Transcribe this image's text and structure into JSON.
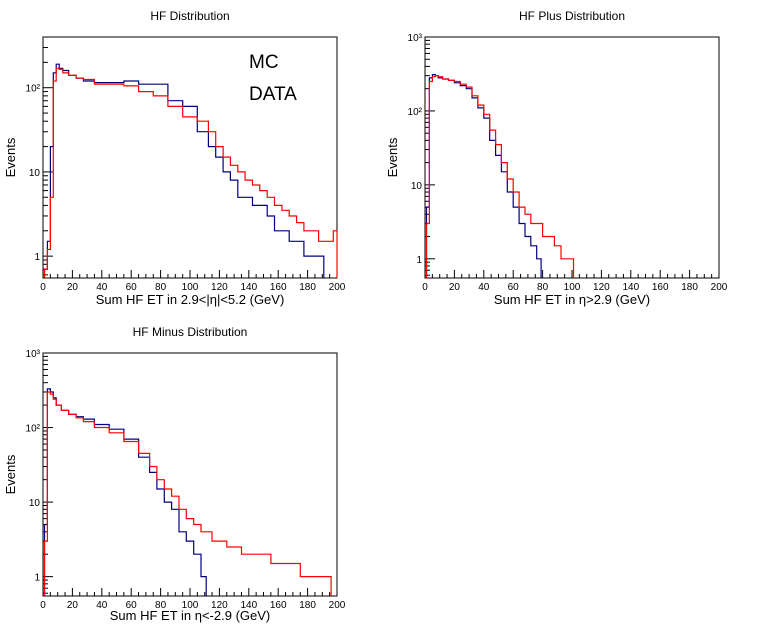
{
  "chart_data": [
    {
      "type": "line",
      "title": "HF Distribution",
      "xlabel": "Sum HF ET in 2.9<|η|<5.2 (GeV)",
      "ylabel": "Events",
      "xlim": [
        0,
        200
      ],
      "ylim": [
        0.55,
        400
      ],
      "yscale": "log",
      "x_ticks": [
        "0",
        "20",
        "40",
        "60",
        "80",
        "100",
        "120",
        "140",
        "160",
        "180",
        "200"
      ],
      "y_ticks": [
        {
          "value": 1,
          "label": "1"
        },
        {
          "value": 10,
          "label": "10"
        },
        {
          "value": 100,
          "label": "10²"
        }
      ],
      "legend": {
        "placement": "top-right",
        "entries": [
          "MC",
          "DATA"
        ]
      },
      "series": [
        {
          "name": "MC",
          "color": "#000080",
          "x": [
            2,
            4,
            6,
            8,
            10,
            12,
            15,
            20,
            25,
            30,
            40,
            50,
            60,
            70,
            80,
            90,
            100,
            110,
            115,
            120,
            125,
            130,
            135,
            140,
            145,
            150,
            155,
            160,
            165,
            170,
            175,
            180,
            185,
            190
          ],
          "y": [
            0.7,
            1.5,
            20,
            150,
            190,
            170,
            160,
            140,
            130,
            120,
            115,
            115,
            120,
            110,
            110,
            70,
            60,
            30,
            20,
            15,
            10,
            8,
            5,
            5,
            4,
            4,
            3,
            2,
            2,
            1.5,
            1.5,
            1,
            1,
            1
          ]
        },
        {
          "name": "DATA",
          "color": "#ff0000",
          "x": [
            2,
            4,
            6,
            8,
            10,
            12,
            15,
            20,
            25,
            30,
            40,
            50,
            60,
            70,
            80,
            90,
            100,
            110,
            115,
            120,
            125,
            130,
            135,
            140,
            145,
            150,
            155,
            160,
            165,
            170,
            175,
            180,
            185,
            190,
            195,
            200
          ],
          "y": [
            0.7,
            1.2,
            5,
            120,
            170,
            165,
            150,
            140,
            130,
            125,
            110,
            110,
            105,
            90,
            80,
            60,
            45,
            40,
            30,
            20,
            15,
            12,
            10,
            8,
            7,
            6,
            5,
            4,
            3.5,
            3,
            2.5,
            2,
            2,
            1.5,
            1.5,
            2
          ]
        }
      ]
    },
    {
      "type": "line",
      "title": "HF Plus Distribution",
      "xlabel": "Sum HF ET in η>2.9 (GeV)",
      "ylabel": "Events",
      "xlim": [
        0,
        200
      ],
      "ylim": [
        0.55,
        1000
      ],
      "yscale": "log",
      "x_ticks": [
        "0",
        "20",
        "40",
        "60",
        "80",
        "100",
        "120",
        "140",
        "160",
        "180",
        "200"
      ],
      "y_ticks": [
        {
          "value": 1,
          "label": "1"
        },
        {
          "value": 10,
          "label": "10"
        },
        {
          "value": 100,
          "label": "10²"
        },
        {
          "value": 1000,
          "label": "10³"
        }
      ],
      "series": [
        {
          "name": "MC",
          "color": "#000080",
          "x": [
            2,
            4,
            6,
            8,
            10,
            14,
            18,
            22,
            26,
            30,
            34,
            38,
            42,
            46,
            50,
            54,
            58,
            62,
            66,
            70,
            74,
            78
          ],
          "y": [
            5,
            280,
            310,
            300,
            280,
            270,
            260,
            240,
            220,
            200,
            150,
            110,
            80,
            40,
            25,
            15,
            8,
            5,
            3,
            2,
            1.5,
            1
          ]
        },
        {
          "name": "DATA",
          "color": "#ff0000",
          "x": [
            2,
            4,
            6,
            8,
            10,
            14,
            18,
            22,
            26,
            30,
            34,
            38,
            42,
            46,
            50,
            54,
            58,
            62,
            66,
            70,
            74,
            78,
            82,
            86,
            90,
            95,
            100
          ],
          "y": [
            3,
            250,
            290,
            300,
            290,
            270,
            260,
            250,
            230,
            210,
            160,
            120,
            90,
            55,
            35,
            20,
            12,
            8,
            5,
            4,
            3,
            3,
            2,
            2,
            1.5,
            1,
            1
          ]
        }
      ]
    },
    {
      "type": "line",
      "title": "HF Minus Distribution",
      "xlabel": "Sum HF ET in η<-2.9 (GeV)",
      "ylabel": "Events",
      "xlim": [
        0,
        200
      ],
      "ylim": [
        0.55,
        1000
      ],
      "yscale": "log",
      "x_ticks": [
        "0",
        "20",
        "40",
        "60",
        "80",
        "100",
        "120",
        "140",
        "160",
        "180",
        "200"
      ],
      "y_ticks": [
        {
          "value": 1,
          "label": "1"
        },
        {
          "value": 10,
          "label": "10"
        },
        {
          "value": 100,
          "label": "10²"
        },
        {
          "value": 1000,
          "label": "10³"
        }
      ],
      "series": [
        {
          "name": "MC",
          "color": "#000080",
          "x": [
            2,
            4,
            6,
            8,
            10,
            15,
            20,
            25,
            30,
            40,
            50,
            60,
            70,
            75,
            80,
            85,
            90,
            95,
            100,
            105,
            110
          ],
          "y": [
            5,
            330,
            300,
            250,
            200,
            170,
            150,
            140,
            130,
            110,
            95,
            70,
            40,
            25,
            15,
            10,
            8,
            4,
            3,
            2,
            1
          ]
        },
        {
          "name": "DATA",
          "color": "#ff0000",
          "x": [
            2,
            4,
            6,
            8,
            10,
            15,
            20,
            25,
            30,
            40,
            50,
            60,
            70,
            75,
            80,
            85,
            90,
            95,
            100,
            105,
            110,
            120,
            130,
            140,
            150,
            160,
            170,
            180,
            190,
            195
          ],
          "y": [
            3,
            300,
            280,
            240,
            200,
            170,
            150,
            135,
            120,
            100,
            85,
            65,
            45,
            30,
            20,
            15,
            12,
            8,
            6,
            5,
            4,
            3,
            2.5,
            2,
            2,
            1.5,
            1.5,
            1,
            1,
            1
          ]
        }
      ]
    }
  ]
}
